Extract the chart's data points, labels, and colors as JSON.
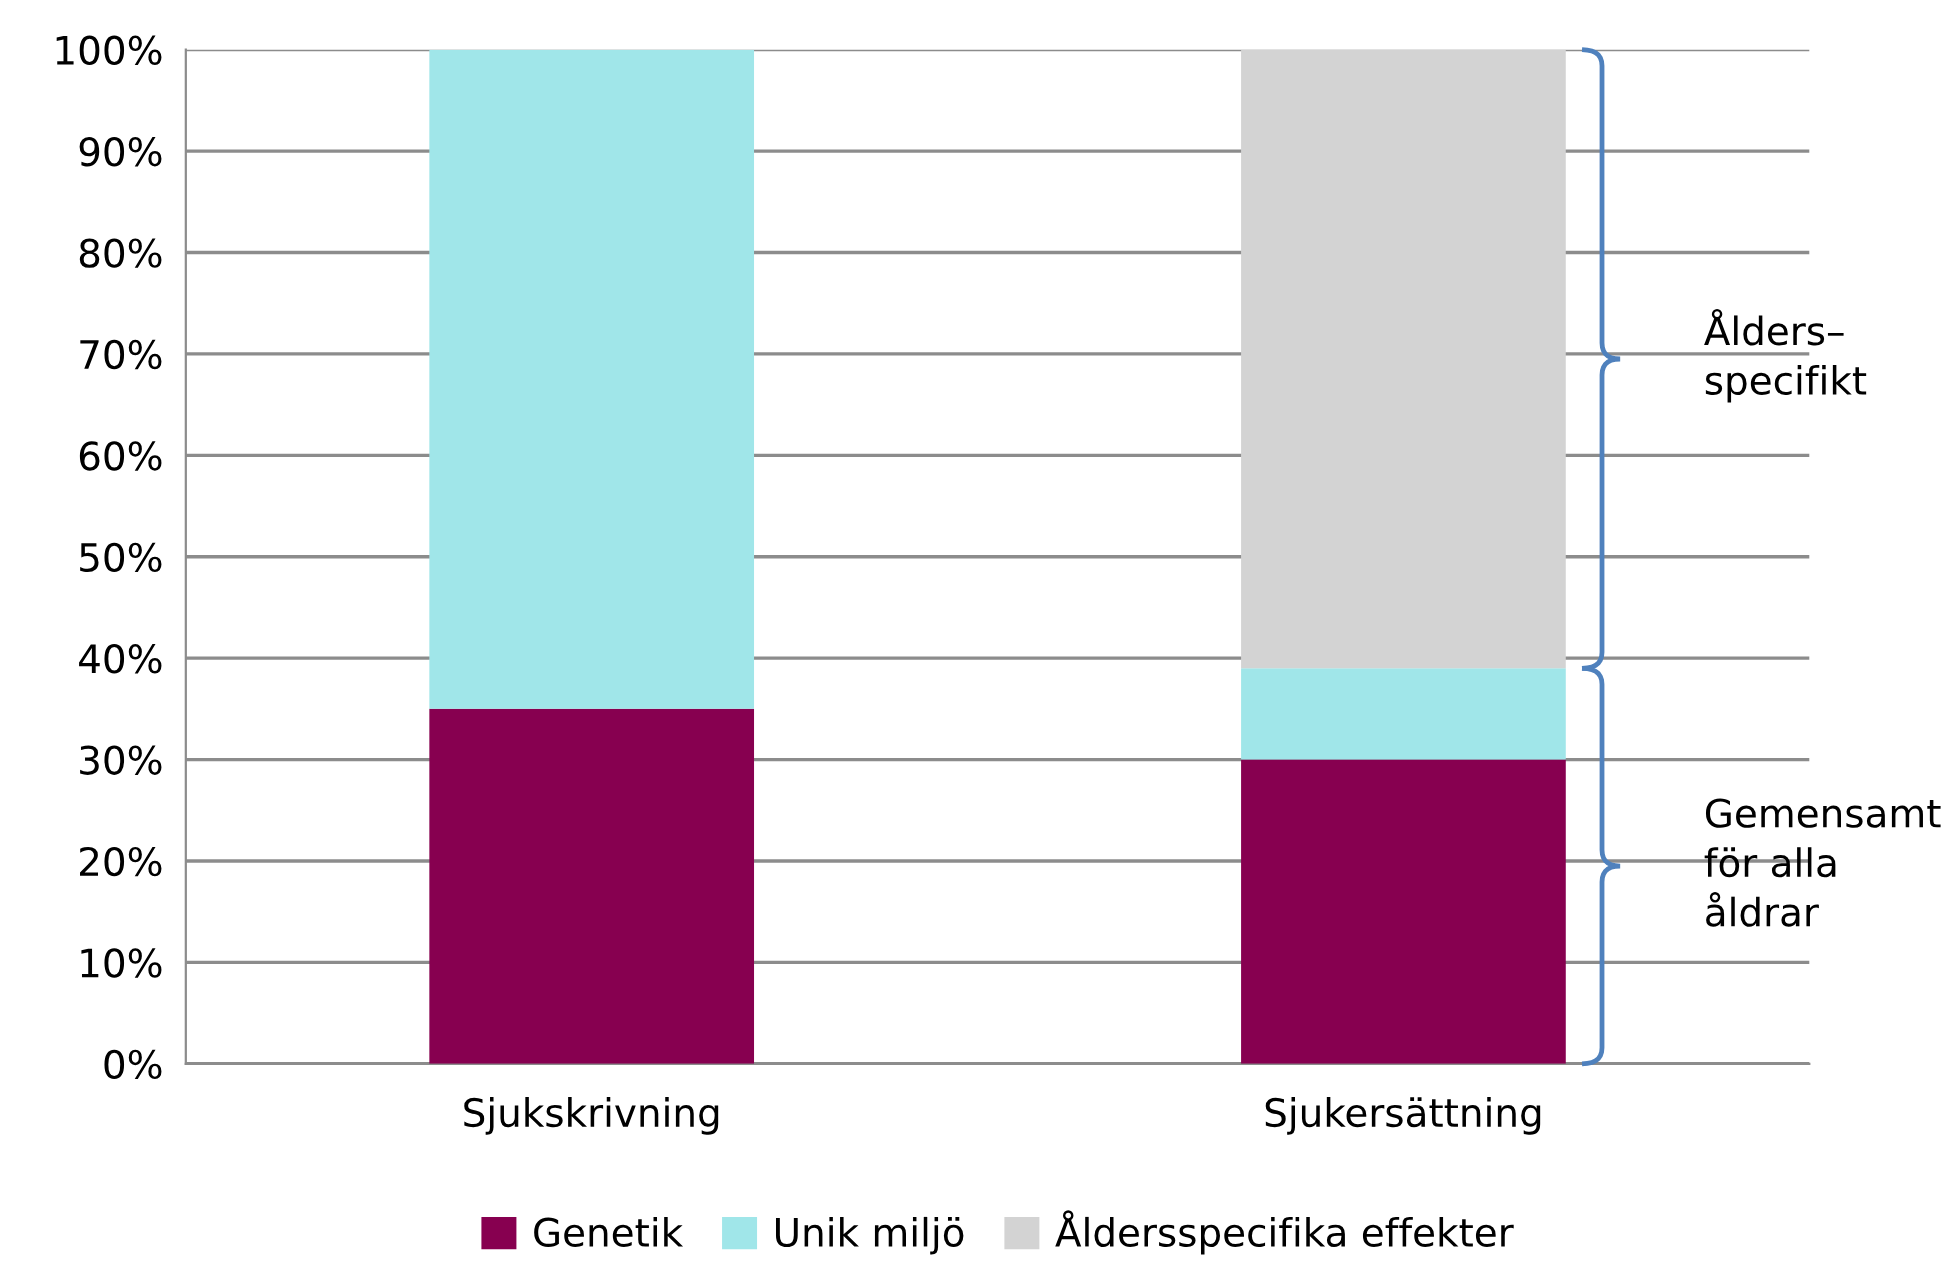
{
  "chart_data": {
    "type": "bar",
    "stacked": true,
    "categories": [
      "Sjukskrivning",
      "Sjukersättning"
    ],
    "series": [
      {
        "name": "Genetik",
        "color": "#870050",
        "values": [
          35,
          30
        ]
      },
      {
        "name": "Unik miljö",
        "color": "#a0e6e9",
        "values": [
          65,
          9
        ]
      },
      {
        "name": "Åldersspecifika effekter",
        "color": "#d3d3d3",
        "values": [
          0,
          61
        ]
      }
    ],
    "ylim": [
      0,
      100
    ],
    "yticks": [
      {
        "value": 0,
        "label": "0%"
      },
      {
        "value": 10,
        "label": "10%"
      },
      {
        "value": 20,
        "label": "20%"
      },
      {
        "value": 30,
        "label": "30%"
      },
      {
        "value": 40,
        "label": "40%"
      },
      {
        "value": 50,
        "label": "50%"
      },
      {
        "value": 60,
        "label": "60%"
      },
      {
        "value": 70,
        "label": "70%"
      },
      {
        "value": 80,
        "label": "80%"
      },
      {
        "value": 90,
        "label": "90%"
      },
      {
        "value": 100,
        "label": "100%"
      }
    ],
    "grid": "y",
    "legend": "bottom",
    "annotations": [
      "Ålders–\nspecifikt",
      "Gemensamt\nför alla\nåldrar"
    ]
  }
}
